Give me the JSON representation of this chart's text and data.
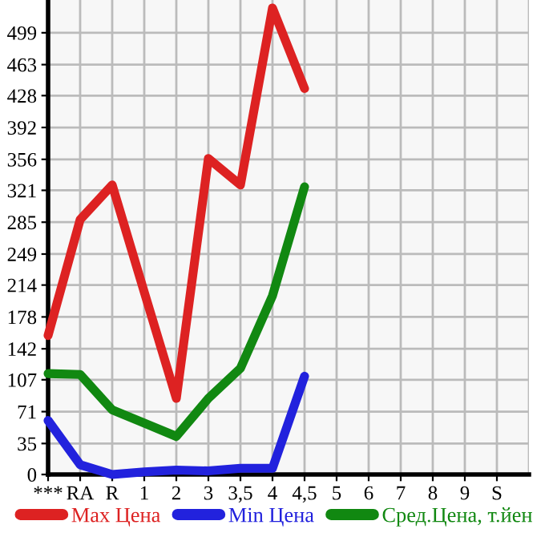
{
  "chart_data": {
    "type": "line",
    "categories": [
      "***",
      "RA",
      "R",
      "1",
      "2",
      "3",
      "3,5",
      "4",
      "4,5",
      "5",
      "6",
      "7",
      "8",
      "9",
      "S"
    ],
    "series": [
      {
        "name": "Max Цена",
        "color": "#dd2222",
        "values": [
          157,
          288,
          327,
          206,
          86,
          357,
          327,
          527,
          436,
          null,
          null,
          null,
          null,
          null,
          null
        ]
      },
      {
        "name": "Min Цена",
        "color": "#2222dd",
        "values": [
          61,
          11,
          0,
          3,
          5,
          4,
          7,
          7,
          111,
          null,
          null,
          null,
          null,
          null,
          null
        ]
      },
      {
        "name": "Сред.Цена, т.йен",
        "color": "#118811",
        "values": [
          114,
          113,
          73,
          58,
          43,
          86,
          120,
          202,
          325,
          null,
          null,
          null,
          null,
          null,
          null
        ]
      }
    ],
    "ylim": [
      0,
      536
    ],
    "yticks": [
      0,
      35,
      71,
      107,
      142,
      178,
      214,
      249,
      285,
      321,
      356,
      392,
      428,
      463,
      499
    ],
    "grid": true,
    "legend": "bottom",
    "marker": "none",
    "line_style": "solid"
  }
}
